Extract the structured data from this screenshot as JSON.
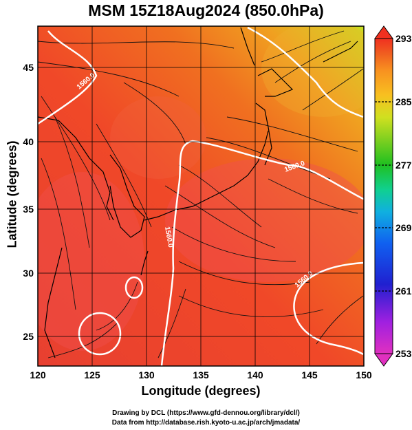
{
  "title": "MSM 15Z18Aug2024 (850.0hPa)",
  "map": {
    "xlabel": "Longitude (degrees)",
    "ylabel": "Latitude  (degrees)",
    "x_ticks": [
      "120",
      "125",
      "130",
      "135",
      "140",
      "145",
      "150"
    ],
    "y_ticks": [
      "25",
      "30",
      "35",
      "40",
      "45"
    ],
    "lon_range": [
      120,
      150
    ],
    "lat_range": [
      22.4,
      47.6
    ],
    "contour_labels": [
      "1560.0",
      "1560.0",
      "1560.0",
      "1560.0"
    ]
  },
  "colorbar": {
    "ticks": [
      "293",
      "285",
      "277",
      "269",
      "261",
      "253"
    ],
    "range": [
      253,
      293
    ],
    "colors": [
      "#e030c0",
      "#a020e0",
      "#2020d0",
      "#1060f0",
      "#10b0e0",
      "#10d090",
      "#20c020",
      "#80d020",
      "#d0e020",
      "#f8c020",
      "#f89020",
      "#f06020",
      "#f03020"
    ]
  },
  "credits": {
    "line1": "Drawing by DCL (https://www.gfd-dennou.org/library/dcl/)",
    "line2": "Data from http://database.rish.kyoto-u.ac.jp/arch/jmadata/"
  }
}
